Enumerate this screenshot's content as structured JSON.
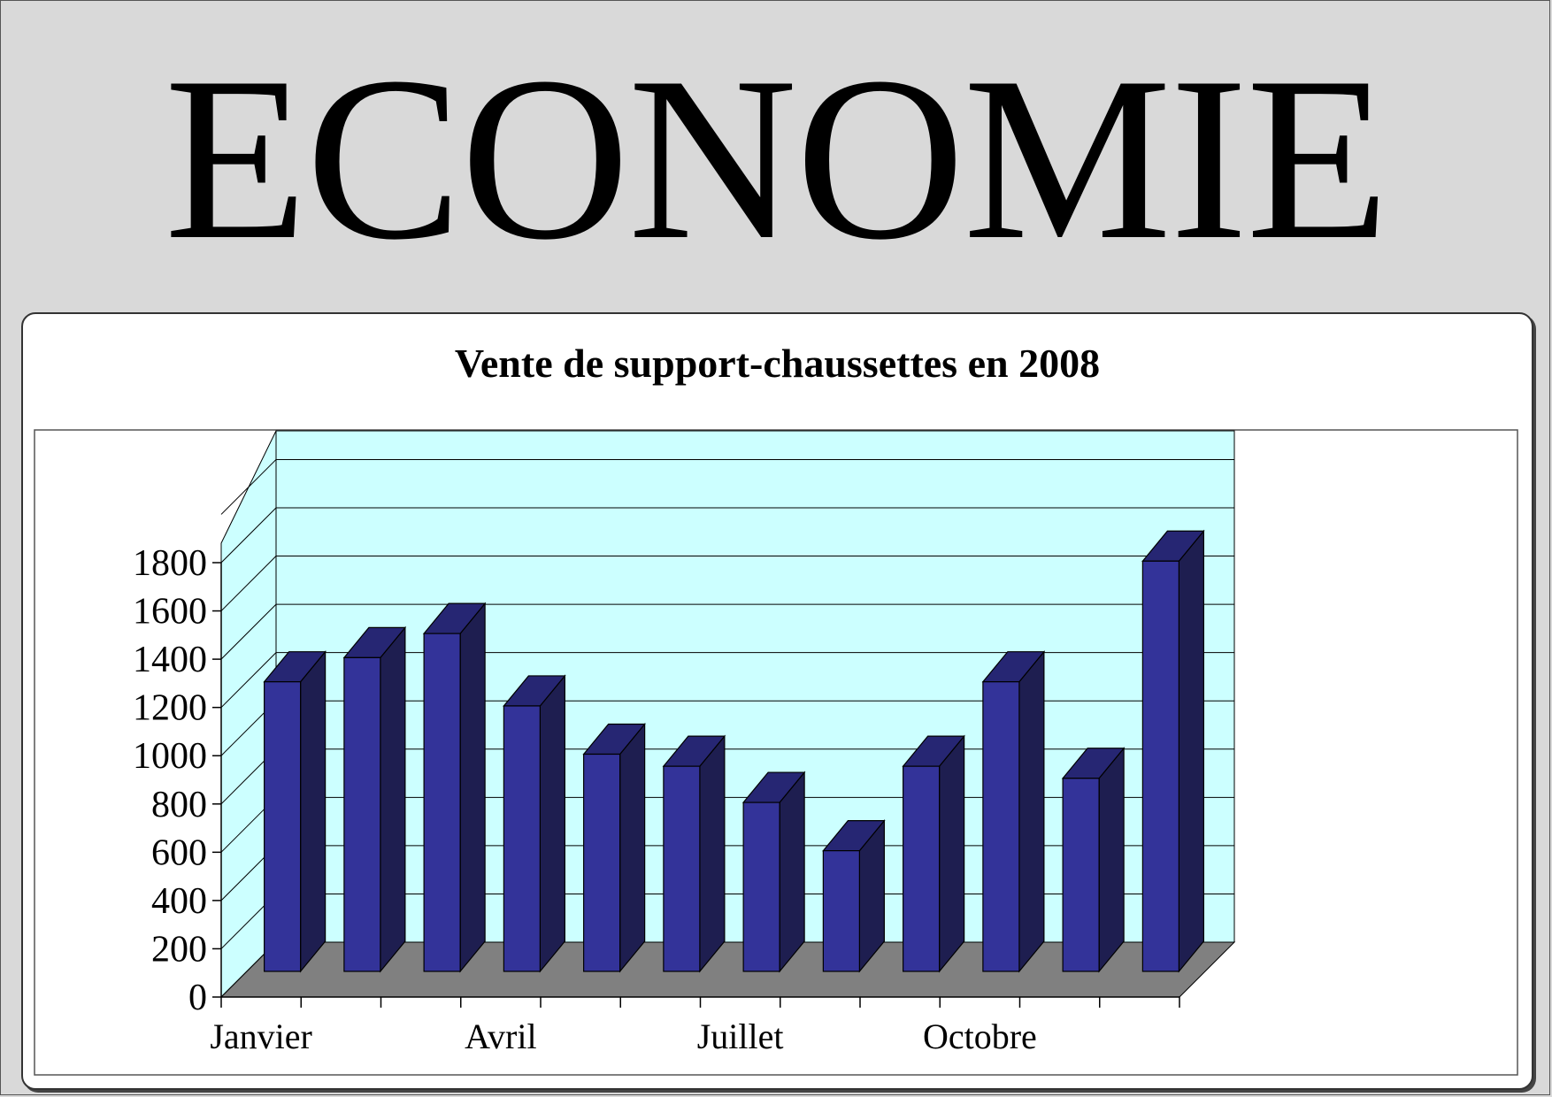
{
  "page": {
    "headline": "ECONOMIE"
  },
  "colors": {
    "background": "#d9d9d9",
    "wall": "#ccffff",
    "floor": "#808080",
    "bar_front": "#333399",
    "bar_side": "#1e1e50",
    "bar_top": "#262673"
  },
  "chart_data": {
    "type": "bar",
    "style": "3d-column",
    "title": "Vente de support-chaussettes en 2008",
    "xlabel": "",
    "ylabel": "",
    "ylim": [
      0,
      1800
    ],
    "yticks": [
      0,
      200,
      400,
      600,
      800,
      1000,
      1200,
      1400,
      1600,
      1800
    ],
    "ytick_labels": [
      "0",
      "200",
      "400",
      "600",
      "800",
      "1000",
      "1200",
      "1400",
      "1600",
      "1800"
    ],
    "xtick_labels": [
      "Janvier",
      "",
      "",
      "Avril",
      "",
      "",
      "Juillet",
      "",
      "",
      "Octobre",
      "",
      ""
    ],
    "grid": true,
    "legend": "none",
    "values": [
      1200,
      1300,
      1400,
      1100,
      900,
      850,
      700,
      500,
      850,
      1200,
      800,
      1700
    ]
  }
}
